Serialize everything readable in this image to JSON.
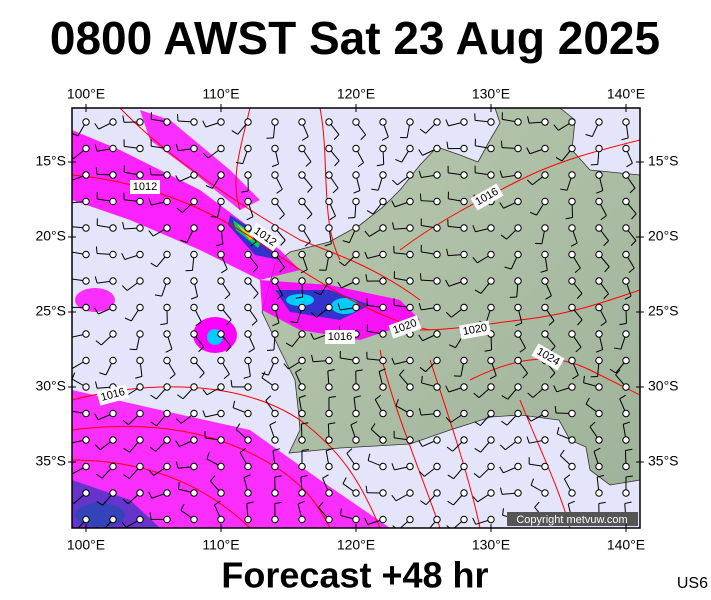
{
  "title": "0800 AWST Sat 23 Aug 2025",
  "longitude_labels": [
    "100°E",
    "110°E",
    "120°E",
    "130°E",
    "140°E"
  ],
  "latitude_labels": [
    "15°S",
    "20°S",
    "25°S",
    "30°S",
    "35°S"
  ],
  "isobar_labels": [
    "1012",
    "1012",
    "1016",
    "1016",
    "1020",
    "1020",
    "1024",
    "1016"
  ],
  "copyright": "Copyright metvuw.com",
  "footer": "Forecast +48 hr",
  "code": "US6"
}
